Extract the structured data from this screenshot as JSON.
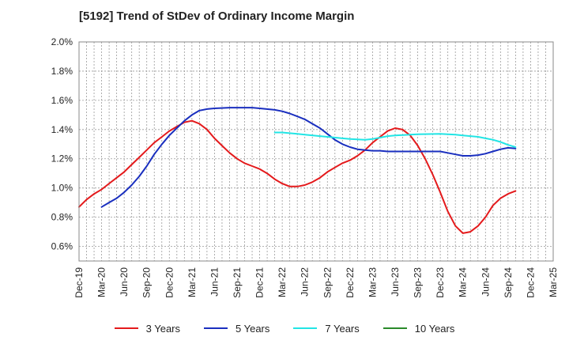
{
  "chart_data": {
    "type": "line",
    "title": "[5192]  Trend of StDev of Ordinary Income Margin",
    "xlabel": "",
    "ylabel": "",
    "x_ticks": [
      "Dec-19",
      "Mar-20",
      "Jun-20",
      "Sep-20",
      "Dec-20",
      "Mar-21",
      "Jun-21",
      "Sep-21",
      "Dec-21",
      "Mar-22",
      "Jun-22",
      "Sep-22",
      "Dec-22",
      "Mar-23",
      "Jun-23",
      "Sep-23",
      "Dec-23",
      "Mar-24",
      "Jun-24",
      "Sep-24",
      "Dec-24",
      "Mar-25"
    ],
    "y_ticks": [
      "0.6%",
      "0.8%",
      "1.0%",
      "1.2%",
      "1.4%",
      "1.6%",
      "1.8%",
      "2.0%"
    ],
    "ylim": [
      0.5,
      2.0
    ],
    "grid": true,
    "legend_position": "bottom",
    "series": [
      {
        "name": "3 Years",
        "color": "#e41a1c",
        "values": [
          [
            0,
            0.87
          ],
          [
            0.33,
            0.92
          ],
          [
            0.67,
            0.96
          ],
          [
            1,
            0.99
          ],
          [
            1.33,
            1.03
          ],
          [
            1.67,
            1.07
          ],
          [
            2,
            1.11
          ],
          [
            2.33,
            1.16
          ],
          [
            2.67,
            1.21
          ],
          [
            3,
            1.26
          ],
          [
            3.33,
            1.31
          ],
          [
            3.67,
            1.35
          ],
          [
            4,
            1.39
          ],
          [
            4.33,
            1.42
          ],
          [
            4.67,
            1.45
          ],
          [
            5,
            1.46
          ],
          [
            5.33,
            1.44
          ],
          [
            5.67,
            1.4
          ],
          [
            6,
            1.34
          ],
          [
            6.33,
            1.29
          ],
          [
            6.67,
            1.24
          ],
          [
            7,
            1.2
          ],
          [
            7.33,
            1.17
          ],
          [
            7.67,
            1.15
          ],
          [
            8,
            1.13
          ],
          [
            8.33,
            1.1
          ],
          [
            8.67,
            1.06
          ],
          [
            9,
            1.03
          ],
          [
            9.33,
            1.01
          ],
          [
            9.67,
            1.01
          ],
          [
            10,
            1.02
          ],
          [
            10.33,
            1.04
          ],
          [
            10.67,
            1.07
          ],
          [
            11,
            1.11
          ],
          [
            11.33,
            1.14
          ],
          [
            11.67,
            1.17
          ],
          [
            12,
            1.19
          ],
          [
            12.33,
            1.22
          ],
          [
            12.67,
            1.26
          ],
          [
            13,
            1.31
          ],
          [
            13.33,
            1.35
          ],
          [
            13.67,
            1.39
          ],
          [
            14,
            1.41
          ],
          [
            14.33,
            1.4
          ],
          [
            14.67,
            1.36
          ],
          [
            15,
            1.29
          ],
          [
            15.33,
            1.2
          ],
          [
            15.67,
            1.09
          ],
          [
            16,
            0.97
          ],
          [
            16.33,
            0.84
          ],
          [
            16.67,
            0.74
          ],
          [
            17,
            0.69
          ],
          [
            17.33,
            0.7
          ],
          [
            17.67,
            0.74
          ],
          [
            18,
            0.8
          ],
          [
            18.33,
            0.88
          ],
          [
            18.67,
            0.93
          ],
          [
            19,
            0.96
          ],
          [
            19.33,
            0.98
          ]
        ]
      },
      {
        "name": "5 Years",
        "color": "#1a2fbf",
        "values": [
          [
            1,
            0.87
          ],
          [
            1.33,
            0.9
          ],
          [
            1.67,
            0.93
          ],
          [
            2,
            0.97
          ],
          [
            2.33,
            1.02
          ],
          [
            2.67,
            1.08
          ],
          [
            3,
            1.15
          ],
          [
            3.33,
            1.23
          ],
          [
            3.67,
            1.3
          ],
          [
            4,
            1.36
          ],
          [
            4.33,
            1.41
          ],
          [
            4.67,
            1.46
          ],
          [
            5,
            1.5
          ],
          [
            5.33,
            1.53
          ],
          [
            5.67,
            1.54
          ],
          [
            6,
            1.545
          ],
          [
            6.67,
            1.55
          ],
          [
            7,
            1.55
          ],
          [
            7.67,
            1.55
          ],
          [
            8,
            1.545
          ],
          [
            8.67,
            1.535
          ],
          [
            9,
            1.525
          ],
          [
            9.33,
            1.51
          ],
          [
            9.67,
            1.49
          ],
          [
            10,
            1.47
          ],
          [
            10.33,
            1.44
          ],
          [
            10.67,
            1.41
          ],
          [
            11,
            1.37
          ],
          [
            11.33,
            1.33
          ],
          [
            11.67,
            1.3
          ],
          [
            12,
            1.28
          ],
          [
            12.33,
            1.265
          ],
          [
            12.67,
            1.26
          ],
          [
            13,
            1.255
          ],
          [
            13.33,
            1.255
          ],
          [
            13.67,
            1.25
          ],
          [
            14,
            1.25
          ],
          [
            14.67,
            1.25
          ],
          [
            15,
            1.25
          ],
          [
            15.67,
            1.25
          ],
          [
            16,
            1.25
          ],
          [
            16.33,
            1.24
          ],
          [
            16.67,
            1.23
          ],
          [
            17,
            1.22
          ],
          [
            17.33,
            1.22
          ],
          [
            17.67,
            1.225
          ],
          [
            18,
            1.235
          ],
          [
            18.33,
            1.25
          ],
          [
            18.67,
            1.265
          ],
          [
            19,
            1.275
          ],
          [
            19.33,
            1.27
          ]
        ]
      },
      {
        "name": "7 Years",
        "color": "#22e5e5",
        "values": [
          [
            8.67,
            1.38
          ],
          [
            9,
            1.38
          ],
          [
            9.33,
            1.375
          ],
          [
            9.67,
            1.37
          ],
          [
            10,
            1.365
          ],
          [
            10.67,
            1.355
          ],
          [
            11,
            1.35
          ],
          [
            11.67,
            1.34
          ],
          [
            12,
            1.335
          ],
          [
            12.67,
            1.33
          ],
          [
            13,
            1.335
          ],
          [
            13.33,
            1.345
          ],
          [
            13.67,
            1.355
          ],
          [
            14,
            1.36
          ],
          [
            14.67,
            1.365
          ],
          [
            15,
            1.368
          ],
          [
            16,
            1.37
          ],
          [
            16.67,
            1.365
          ],
          [
            17,
            1.36
          ],
          [
            17.67,
            1.35
          ],
          [
            18,
            1.34
          ],
          [
            18.33,
            1.33
          ],
          [
            18.67,
            1.315
          ],
          [
            19,
            1.295
          ],
          [
            19.33,
            1.28
          ]
        ]
      },
      {
        "name": "10 Years",
        "color": "#2a8a2a",
        "values": []
      }
    ]
  }
}
